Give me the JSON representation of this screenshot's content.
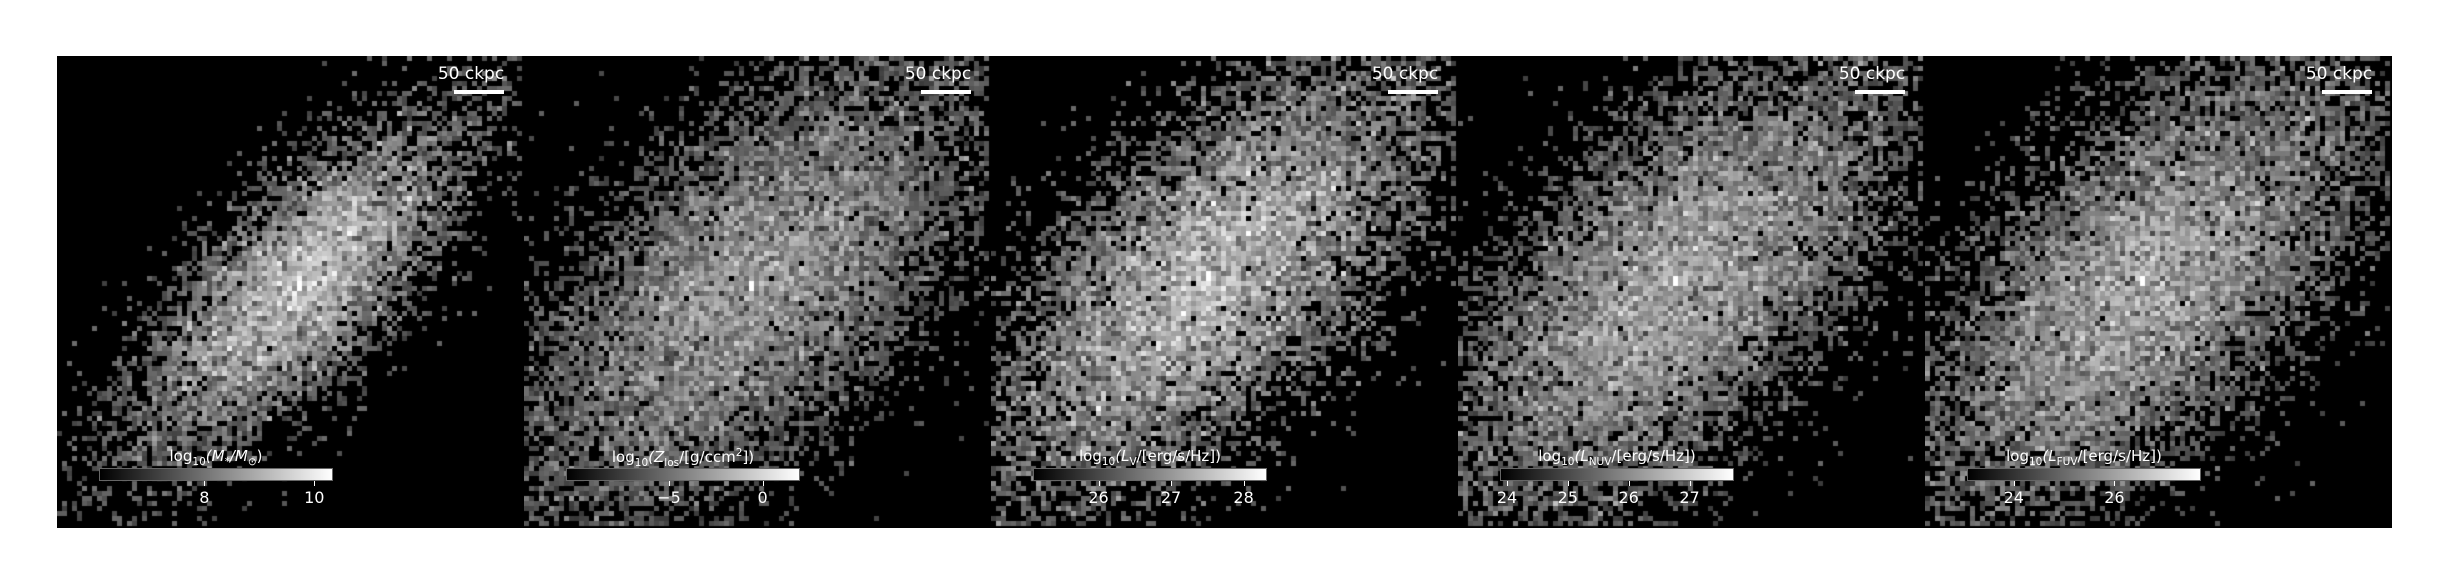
{
  "panels": [
    {
      "scale_label": "50 ckpc",
      "cb_title_parts": [
        "log",
        "10",
        "(M",
        "*",
        "/M",
        "⊙",
        ")"
      ],
      "ticks": [
        {
          "label": "8",
          "frac": 0.45
        },
        {
          "label": "10",
          "frac": 0.92
        }
      ],
      "seed": 11,
      "center": [
        0.52,
        0.49
      ],
      "spread": [
        0.18,
        0.3
      ],
      "density": 0.9,
      "glow": 1.0
    },
    {
      "scale_label": "50 ckpc",
      "cb_title_parts": [
        "log",
        "10",
        "(Z",
        "los",
        "/[g/ccm",
        "2",
        "])"
      ],
      "ticks": [
        {
          "label": "−5",
          "frac": 0.44
        },
        {
          "label": "0",
          "frac": 0.84
        }
      ],
      "seed": 22,
      "center": [
        0.49,
        0.49
      ],
      "spread": [
        0.3,
        0.42
      ],
      "density": 1.6,
      "glow": 0.8
    },
    {
      "scale_label": "50 ckpc",
      "cb_title_parts": [
        "log",
        "10",
        "(L",
        "V",
        "/[erg/s/Hz])",
        "",
        ""
      ],
      "ticks": [
        {
          "label": "26",
          "frac": 0.28
        },
        {
          "label": "27",
          "frac": 0.59
        },
        {
          "label": "28",
          "frac": 0.9
        }
      ],
      "seed": 33,
      "center": [
        0.47,
        0.47
      ],
      "spread": [
        0.28,
        0.4
      ],
      "density": 1.5,
      "glow": 1.0
    },
    {
      "scale_label": "50 ckpc",
      "cb_title_parts": [
        "log",
        "10",
        "(L",
        "NUV",
        "/[erg/s/Hz])",
        "",
        ""
      ],
      "ticks": [
        {
          "label": "24",
          "frac": 0.03
        },
        {
          "label": "25",
          "frac": 0.29
        },
        {
          "label": "26",
          "frac": 0.55
        },
        {
          "label": "27",
          "frac": 0.81
        }
      ],
      "seed": 44,
      "center": [
        0.47,
        0.48
      ],
      "spread": [
        0.3,
        0.42
      ],
      "density": 1.7,
      "glow": 0.9
    },
    {
      "scale_label": "50 ckpc",
      "cb_title_parts": [
        "log",
        "10",
        "(L",
        "FUV",
        "/[erg/s/Hz])",
        "",
        ""
      ],
      "ticks": [
        {
          "label": "24",
          "frac": 0.2
        },
        {
          "label": "26",
          "frac": 0.63
        }
      ],
      "seed": 55,
      "center": [
        0.47,
        0.48
      ],
      "spread": [
        0.3,
        0.42
      ],
      "density": 1.7,
      "glow": 0.9
    }
  ]
}
